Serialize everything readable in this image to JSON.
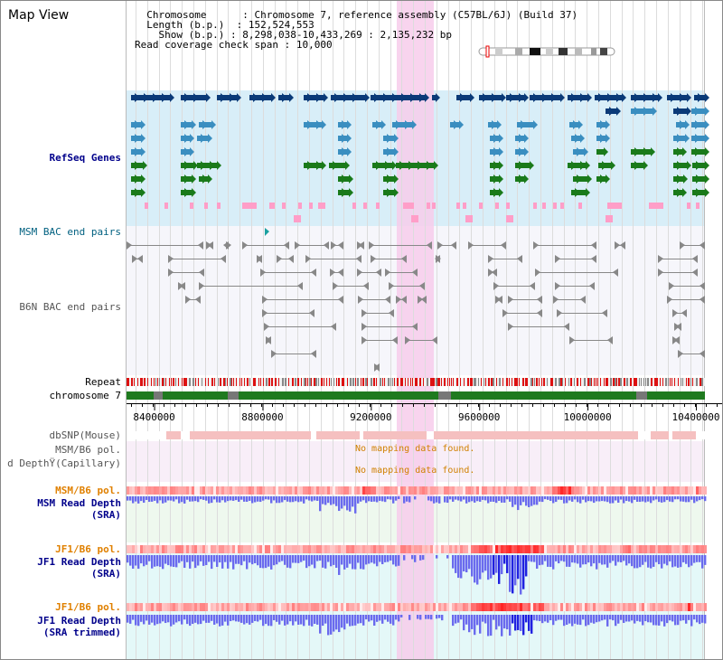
{
  "page": {
    "title": "Map View"
  },
  "info": {
    "chromosome_label": "Chromosome",
    "chromosome_value": "Chromosome 7, reference assembly (C57BL/6J) (Build 37)",
    "length_label": "Length (b.p.)",
    "length_value": "152,524,553",
    "show_label": "Show (b.p.)",
    "show_value": "8,298,038-10,433,269 : 2,135,232 bp",
    "span_label": "Read coverage check span",
    "span_value": "10,000"
  },
  "tracks": {
    "refseq": "RefSeq Genes",
    "msm_bac": "MSM BAC end pairs",
    "b6n_bac": "B6N BAC end pairs",
    "repeat": "Repeat",
    "chromosome": "chromosome 7",
    "dbsnp": "dbSNP(Mouse)",
    "msm_b6_pol_cap": "MSM/B6 pol.",
    "read_depth_cap": "d DepthŸ(Capillary)",
    "msm_b6_pol_sra": "MSM/B6 pol.",
    "msm_read_depth_1": "MSM Read Depth",
    "msm_read_depth_2": "(SRA)",
    "jf1_b6_pol_1": "JF1/B6 pol.",
    "jf1_read_depth_1": "JF1 Read Depth",
    "jf1_read_depth_2": "(SRA)",
    "jf1_b6_pol_2": "JF1/B6 pol.",
    "jf1_trim_1": "JF1 Read Depth",
    "jf1_trim_2": "(SRA trimmed)"
  },
  "messages": {
    "no_data_1": "No mapping data found.",
    "no_data_2": "No mapping data found."
  },
  "axis": {
    "ticks": [
      "8400000",
      "8800000",
      "9200000",
      "9600000",
      "10000000",
      "10400000"
    ],
    "tick_values": [
      8400000,
      8800000,
      9200000,
      9600000,
      10000000,
      10400000
    ],
    "range_start": 8298038,
    "range_end": 10433269
  },
  "colors": {
    "refseq_bg": "#d8eef8",
    "gene_dark": "#0a3a78",
    "gene_mid": "#3a8ec0",
    "gene_green": "#1a7a1a",
    "gene_pink": "#ff9ec8",
    "highlight": "#f7cdeb",
    "depth_blue": "#6a6aee",
    "repeat_red": "#dd1111",
    "chrom_green": "#1f7a1f"
  }
}
